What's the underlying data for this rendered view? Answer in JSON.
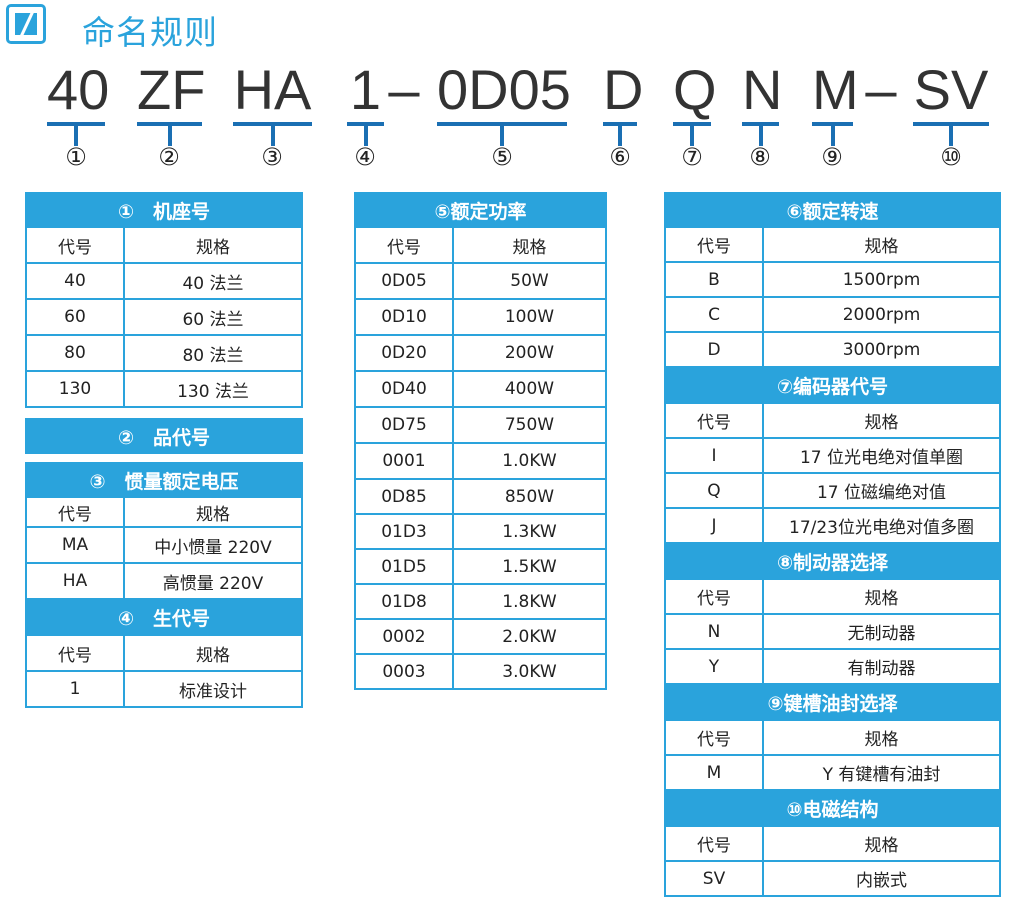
{
  "title": "命名规则",
  "code": [
    "40",
    "ZF",
    "HA",
    "1",
    "–",
    "0D05",
    "D",
    "Q",
    "N",
    "M",
    "–",
    "SV"
  ],
  "numbers": [
    "①",
    "②",
    "③",
    "④",
    "⑤",
    "⑥",
    "⑦",
    "⑧",
    "⑨",
    "⑩"
  ],
  "colors": {
    "accent": "#2aa3dc",
    "underline": "#1a6fb3"
  },
  "tables": {
    "left": [
      {
        "header": "①　机座号",
        "rows": [
          [
            "代号",
            "规格"
          ],
          [
            "40",
            "40 法兰"
          ],
          [
            "60",
            "60 法兰"
          ],
          [
            "80",
            "80 法兰"
          ],
          [
            "130",
            "130 法兰"
          ]
        ]
      },
      {
        "header": "②　品代号",
        "rows": []
      },
      {
        "header": "③　惯量额定电压",
        "rows": [
          [
            "代号",
            "规格"
          ],
          [
            "MA",
            "中小惯量 220V"
          ],
          [
            "HA",
            "高惯量 220V"
          ]
        ]
      },
      {
        "header": "④　生代号",
        "rows": [
          [
            "代号",
            "规格"
          ],
          [
            "1",
            "标准设计"
          ]
        ]
      }
    ],
    "middle": [
      {
        "header": "⑤额定功率",
        "rows": [
          [
            "代号",
            "规格"
          ],
          [
            "0D05",
            "50W"
          ],
          [
            "0D10",
            "100W"
          ],
          [
            "0D20",
            "200W"
          ],
          [
            "0D40",
            "400W"
          ],
          [
            "0D75",
            "750W"
          ],
          [
            "0001",
            "1.0KW"
          ],
          [
            "0D85",
            "850W"
          ],
          [
            "01D3",
            "1.3KW"
          ],
          [
            "01D5",
            "1.5KW"
          ],
          [
            "01D8",
            "1.8KW"
          ],
          [
            "0002",
            "2.0KW"
          ],
          [
            "0003",
            "3.0KW"
          ]
        ]
      }
    ],
    "right": [
      {
        "header": "⑥额定转速",
        "rows": [
          [
            "代号",
            "规格"
          ],
          [
            "B",
            "1500rpm"
          ],
          [
            "C",
            "2000rpm"
          ],
          [
            "D",
            "3000rpm"
          ]
        ]
      },
      {
        "header": "⑦编码器代号",
        "rows": [
          [
            "代号",
            "规格"
          ],
          [
            "I",
            "17 位光电绝对值单圈"
          ],
          [
            "Q",
            "17 位磁编绝对值"
          ],
          [
            "J",
            "17/23位光电绝对值多圈"
          ]
        ]
      },
      {
        "header": "⑧制动器选择",
        "rows": [
          [
            "代号",
            "规格"
          ],
          [
            "N",
            "无制动器"
          ],
          [
            "Y",
            "有制动器"
          ]
        ]
      },
      {
        "header": "⑨键槽油封选择",
        "rows": [
          [
            "代号",
            "规格"
          ],
          [
            "M",
            "Y 有键槽有油封"
          ]
        ]
      },
      {
        "header": "⑩电磁结构",
        "rows": [
          [
            "代号",
            "规格"
          ],
          [
            "SV",
            "内嵌式"
          ]
        ]
      }
    ]
  }
}
